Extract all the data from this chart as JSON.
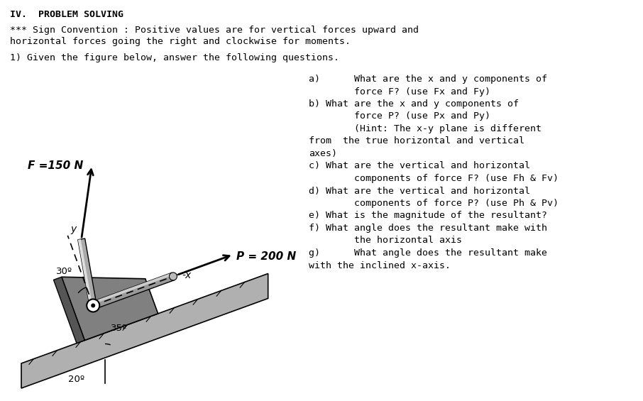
{
  "title": "IV.  PROBLEM SOLVING",
  "sign_conv_line1": "*** Sign Convention : Positive values are for vertical forces upward and",
  "sign_conv_line2": "horizontal forces going the right and clockwise for moments.",
  "prob_stmt": "1) Given the figure below, answer the following questions.",
  "q_lines": [
    "a)      What are the x and y components of",
    "        force F? (use Fx and Fy)",
    "b) What are the x and y components of",
    "        force P? (use Px and Py)",
    "        (Hint: The x-y plane is different",
    "from  the true horizontal and vertical",
    "axes)",
    "c) What are the vertical and horizontal",
    "        components of force F? (use Fh & Fv)",
    "d) What are the vertical and horizontal",
    "        components of force P? (use Ph & Pv)",
    "e) What is the magnitude of the resultant?",
    "f) What angle does the resultant make with",
    "        the horizontal axis",
    "g)      What angle does the resultant make",
    "with the inclined x-axis."
  ],
  "F_label": "F =150 N",
  "P_label": "P = 200 N",
  "y_label": "y",
  "x_label": "-x",
  "angle_30": "30º",
  "angle_35": "35º",
  "angle_20": "20º",
  "bg_color": "#ffffff",
  "text_color": "#000000",
  "ground_color": "#b0b0b0",
  "block_color": "#909090",
  "block_dark": "#606060",
  "cyl_color": "#aaaaaa"
}
